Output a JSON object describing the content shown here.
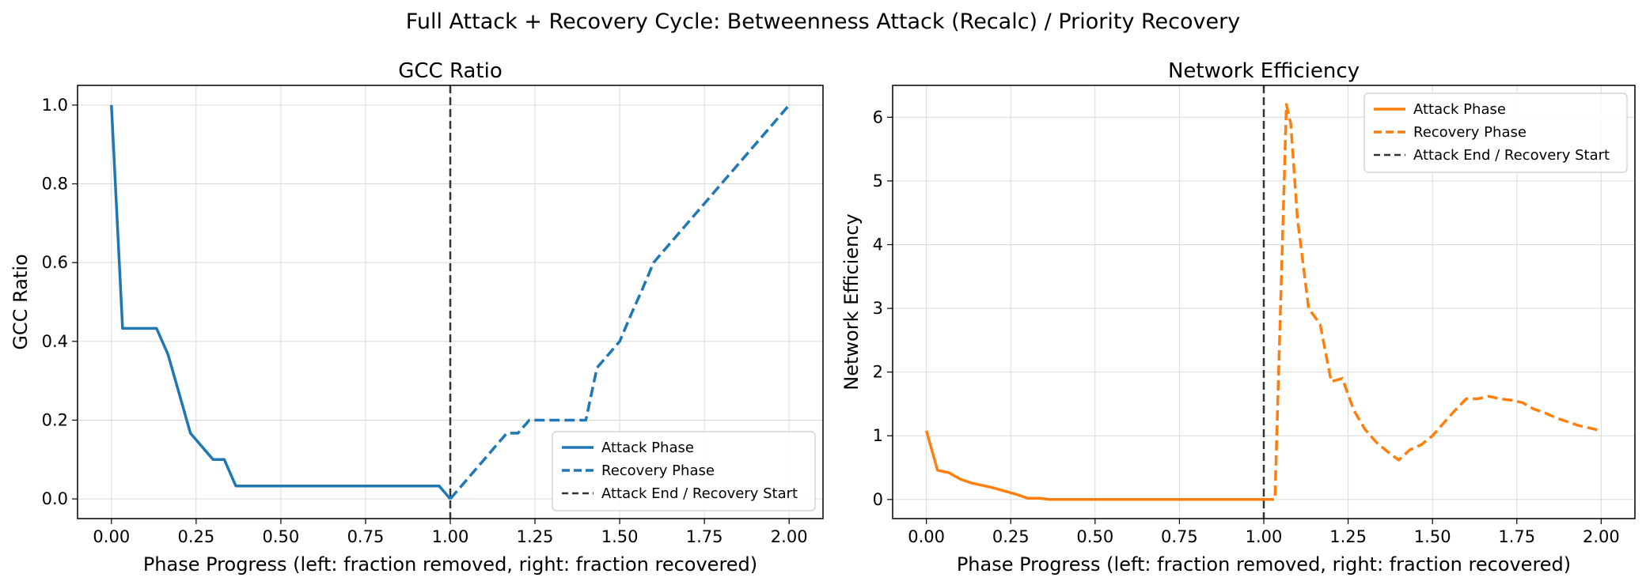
{
  "suptitle": "Full Attack + Recovery Cycle: Betweenness Attack (Recalc) / Priority Recovery",
  "colors": {
    "gcc": "#1f77b4",
    "eff": "#ff7f0e",
    "divider": "#333333",
    "grid": "#d9d9d9"
  },
  "chart_data": [
    {
      "type": "line",
      "title": "GCC Ratio",
      "xlabel": "Phase Progress (left: fraction removed, right: fraction recovered)",
      "ylabel": "GCC Ratio",
      "xlim": [
        -0.1,
        2.1
      ],
      "ylim": [
        -0.05,
        1.05
      ],
      "xticks": [
        0.0,
        0.25,
        0.5,
        0.75,
        1.0,
        1.25,
        1.5,
        1.75,
        2.0
      ],
      "xtick_labels": [
        "0.00",
        "0.25",
        "0.50",
        "0.75",
        "1.00",
        "1.25",
        "1.50",
        "1.75",
        "2.00"
      ],
      "yticks": [
        0.0,
        0.2,
        0.4,
        0.6,
        0.8,
        1.0
      ],
      "ytick_labels": [
        "0.0",
        "0.2",
        "0.4",
        "0.6",
        "0.8",
        "1.0"
      ],
      "grid": true,
      "legend_position": "lower-right",
      "vline": {
        "x": 1.0,
        "name": "Attack End / Recovery Start"
      },
      "series": [
        {
          "name": "Attack Phase",
          "style": "solid",
          "x": [
            0.0,
            0.033,
            0.067,
            0.1,
            0.133,
            0.167,
            0.2,
            0.233,
            0.267,
            0.3,
            0.333,
            0.367,
            0.4,
            0.5,
            0.6,
            0.7,
            0.8,
            0.9,
            0.967,
            1.0
          ],
          "y": [
            1.0,
            0.433,
            0.433,
            0.433,
            0.433,
            0.367,
            0.267,
            0.167,
            0.133,
            0.1,
            0.1,
            0.033,
            0.033,
            0.033,
            0.033,
            0.033,
            0.033,
            0.033,
            0.033,
            0.0
          ]
        },
        {
          "name": "Recovery Phase",
          "style": "dashed",
          "x": [
            1.0,
            1.033,
            1.067,
            1.1,
            1.133,
            1.167,
            1.2,
            1.233,
            1.267,
            1.3,
            1.333,
            1.367,
            1.4,
            1.433,
            1.467,
            1.5,
            1.533,
            1.567,
            1.6,
            1.633,
            1.667,
            1.7,
            1.733,
            1.767,
            1.8,
            1.833,
            1.867,
            1.9,
            1.933,
            1.967,
            2.0
          ],
          "y": [
            0.0,
            0.033,
            0.067,
            0.1,
            0.133,
            0.167,
            0.167,
            0.2,
            0.2,
            0.2,
            0.2,
            0.2,
            0.2,
            0.333,
            0.367,
            0.4,
            0.467,
            0.533,
            0.6,
            0.633,
            0.667,
            0.7,
            0.733,
            0.767,
            0.8,
            0.833,
            0.867,
            0.9,
            0.933,
            0.967,
            1.0
          ]
        }
      ]
    },
    {
      "type": "line",
      "title": "Network Efficiency",
      "xlabel": "Phase Progress (left: fraction removed, right: fraction recovered)",
      "ylabel": "Network Efficiency",
      "xlim": [
        -0.1,
        2.1
      ],
      "ylim": [
        -0.3,
        6.5
      ],
      "xticks": [
        0.0,
        0.25,
        0.5,
        0.75,
        1.0,
        1.25,
        1.5,
        1.75,
        2.0
      ],
      "xtick_labels": [
        "0.00",
        "0.25",
        "0.50",
        "0.75",
        "1.00",
        "1.25",
        "1.50",
        "1.75",
        "2.00"
      ],
      "yticks": [
        0,
        1,
        2,
        3,
        4,
        5,
        6
      ],
      "ytick_labels": [
        "0",
        "1",
        "2",
        "3",
        "4",
        "5",
        "6"
      ],
      "grid": true,
      "legend_position": "upper-right",
      "vline": {
        "x": 1.0,
        "name": "Attack End / Recovery Start"
      },
      "series": [
        {
          "name": "Attack Phase",
          "style": "solid",
          "x": [
            0.0,
            0.033,
            0.067,
            0.1,
            0.133,
            0.167,
            0.2,
            0.233,
            0.267,
            0.3,
            0.333,
            0.367,
            0.4,
            0.5,
            0.6,
            0.7,
            0.8,
            0.9,
            0.967,
            1.0
          ],
          "y": [
            1.08,
            0.46,
            0.42,
            0.32,
            0.26,
            0.22,
            0.18,
            0.13,
            0.08,
            0.02,
            0.02,
            0.0,
            0.0,
            0.0,
            0.0,
            0.0,
            0.0,
            0.0,
            0.0,
            0.0
          ]
        },
        {
          "name": "Recovery Phase",
          "style": "dashed",
          "x": [
            1.0,
            1.033,
            1.067,
            1.08,
            1.1,
            1.133,
            1.167,
            1.2,
            1.233,
            1.267,
            1.3,
            1.333,
            1.367,
            1.4,
            1.433,
            1.467,
            1.5,
            1.533,
            1.567,
            1.6,
            1.633,
            1.667,
            1.7,
            1.733,
            1.767,
            1.8,
            1.833,
            1.867,
            1.9,
            1.933,
            1.967,
            2.0
          ],
          "y": [
            0.0,
            0.0,
            6.2,
            5.9,
            4.4,
            3.0,
            2.75,
            1.85,
            1.9,
            1.4,
            1.1,
            0.9,
            0.75,
            0.62,
            0.78,
            0.86,
            1.0,
            1.2,
            1.4,
            1.58,
            1.58,
            1.62,
            1.58,
            1.56,
            1.52,
            1.42,
            1.36,
            1.28,
            1.22,
            1.16,
            1.12,
            1.08
          ]
        }
      ]
    }
  ]
}
